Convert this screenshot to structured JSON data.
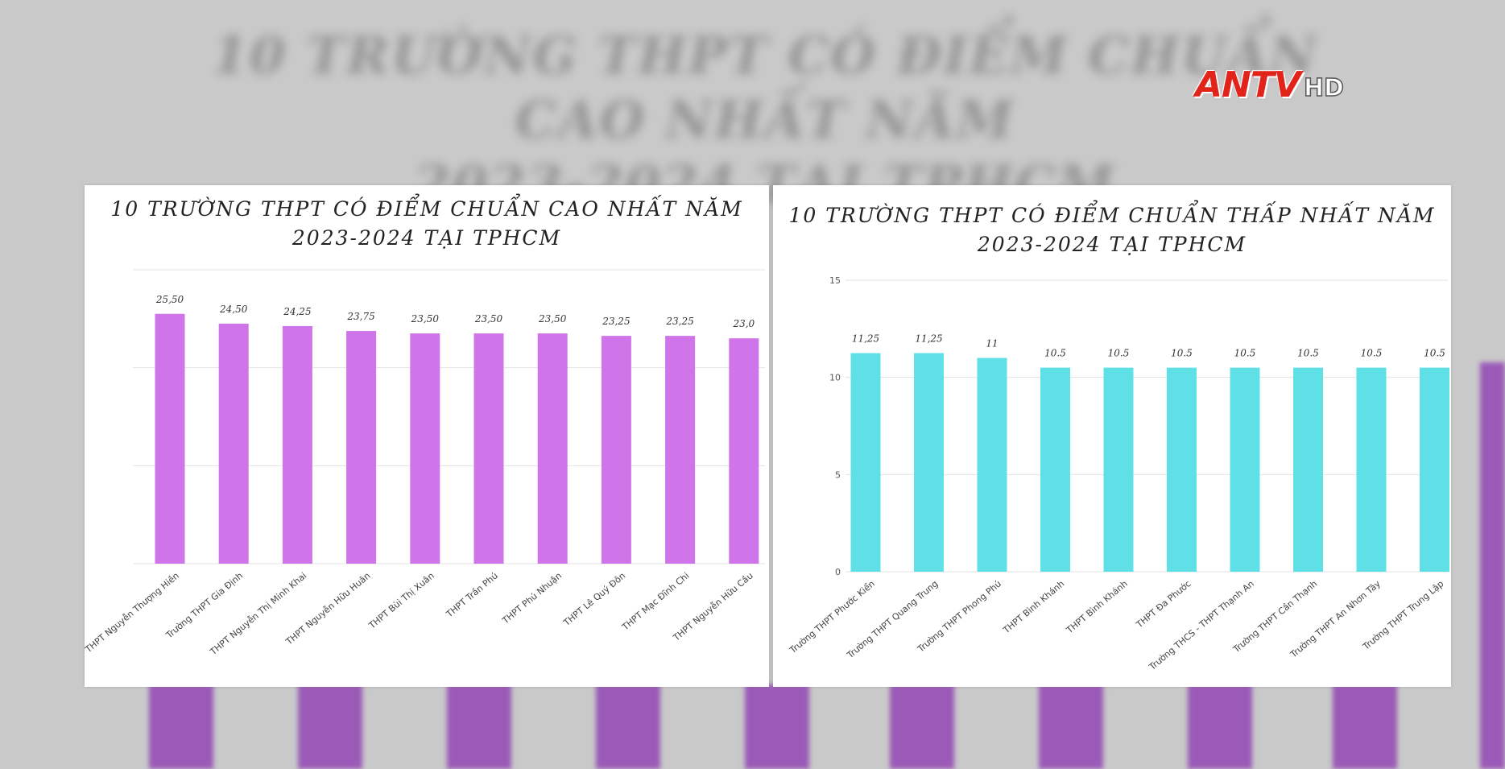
{
  "background": {
    "title_line1": "10 TRƯỜNG THPT CÓ ĐIỂM CHUẨN CAO NHẤT NĂM",
    "title_line2": "2023-2024 TẠI TPHCM",
    "bar_color": "#9b5ab8"
  },
  "logo": {
    "main": "ANTV",
    "sub": "HD",
    "color": "#e2231a"
  },
  "chart_data": [
    {
      "type": "bar",
      "title": "10 TRƯỜNG THPT CÓ ĐIỂM CHUẨN CAO NHẤT NĂM\n2023-2024 TẠI TPHCM",
      "categories": [
        "THPT Nguyễn Thượng Hiền",
        "Trường THPT Gia Định",
        "THPT Nguyễn Thị Minh Khai",
        "THPT Nguyễn Hữu Huân",
        "THPT Bùi Thị Xuân",
        "THPT Trần Phú",
        "THPT Phú Nhuận",
        "THPT Lê Quý Đôn",
        "THPT Mạc Đĩnh Chi",
        "THPT Nguyễn Hữu Cầu"
      ],
      "values": [
        25.5,
        24.5,
        24.25,
        23.75,
        23.5,
        23.5,
        23.5,
        23.25,
        23.25,
        23.0
      ],
      "data_labels": [
        "25,50",
        "24,50",
        "24,25",
        "23,75",
        "23,50",
        "23,50",
        "23,50",
        "23,25",
        "23,25",
        "23,0"
      ],
      "ylim": [
        0,
        30
      ],
      "ytick_values": [
        0,
        10,
        20,
        30
      ],
      "show_ytick_labels": false,
      "grid": true,
      "color": "#cf74e9"
    },
    {
      "type": "bar",
      "title": "10 TRƯỜNG THPT CÓ ĐIỂM CHUẨN THẤP NHẤT NĂM\n2023-2024 TẠI TPHCM",
      "categories": [
        "Trường THPT Phước Kiển",
        "Trường THPT Quang Trung",
        "Trường THPT Phong Phú",
        "THPT Bình Khánh",
        "THPT Bình Khánh",
        "THPT Đa Phước",
        "Trường THCS - THPT Thạnh An",
        "Trường THPT Cần Thạnh",
        "Trường THPT An Nhơn Tây",
        "Trường THPT Trung Lập"
      ],
      "values": [
        11.25,
        11.25,
        11,
        10.5,
        10.5,
        10.5,
        10.5,
        10.5,
        10.5,
        10.5
      ],
      "data_labels": [
        "11,25",
        "11,25",
        "11",
        "10.5",
        "10.5",
        "10.5",
        "10.5",
        "10.5",
        "10.5",
        "10.5"
      ],
      "ylim": [
        0,
        15
      ],
      "ytick_values": [
        0,
        5,
        10,
        15
      ],
      "ytick_labels": [
        "0",
        "5",
        "10",
        "15"
      ],
      "show_ytick_labels": true,
      "grid": true,
      "color": "#5fe0e6"
    }
  ]
}
